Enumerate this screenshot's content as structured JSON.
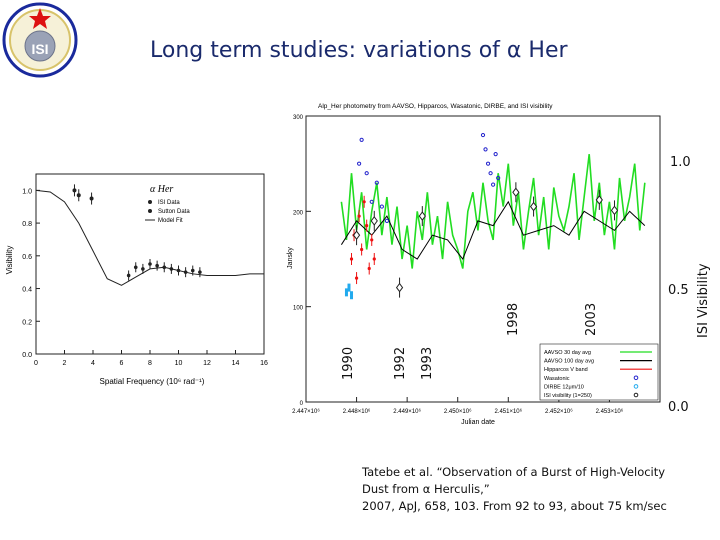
{
  "title": "Long term studies: variations of α Her",
  "logo_text": "ISI",
  "year_labels": [
    "1990",
    "1992",
    "1993",
    "1998",
    "2003"
  ],
  "right_axis": {
    "label": "ISI Visibility",
    "ticks": [
      "1.0",
      "0.5",
      "0.0"
    ]
  },
  "caption": {
    "line1": "Tatebe et al. “Observation of a Burst of High-Velocity",
    "line2": "Dust from α Herculis,”",
    "line3": "2007, ApJ, 658, 103.  From 92 to 93, about 75 km/sec"
  },
  "colors": {
    "title": "#1a2a6c",
    "aavso": "#22dd22",
    "aavso_avg": "#000000",
    "hipparcos": "#ee1111",
    "wasatonic": "#2222cc",
    "dirbe": "#22aaee"
  },
  "chart_data": [
    {
      "type": "scatter",
      "title": "α Her",
      "xlabel": "Spatial Frequency (10⁶ rad⁻¹)",
      "ylabel": "Visibility",
      "xlim": [
        0,
        16
      ],
      "ylim": [
        0,
        1.1
      ],
      "x_ticks": [
        "0",
        "2",
        "4",
        "6",
        "8",
        "10",
        "12",
        "14",
        "16"
      ],
      "y_ticks": [
        "0.0",
        "0.2",
        "0.4",
        "0.6",
        "0.8",
        "1.0"
      ],
      "legend": [
        "ISI Data",
        "Sutton Data",
        "Model Fit"
      ],
      "series": [
        {
          "name": "ISI Data",
          "x": [
            6.5,
            7.0,
            7.5,
            8.0,
            8.5,
            9.0,
            9.5,
            10.0,
            10.5,
            11.0,
            11.5
          ],
          "y": [
            0.48,
            0.53,
            0.52,
            0.55,
            0.54,
            0.53,
            0.52,
            0.51,
            0.5,
            0.51,
            0.5
          ]
        },
        {
          "name": "Sutton Data",
          "x": [
            2.7,
            3.0,
            3.9
          ],
          "y": [
            1.0,
            0.97,
            0.95
          ]
        },
        {
          "name": "Model Fit",
          "x": [
            0,
            1,
            2,
            3,
            4,
            5,
            6,
            7,
            8,
            9,
            10,
            11,
            12,
            13,
            14,
            15,
            16
          ],
          "y": [
            1.0,
            0.99,
            0.93,
            0.8,
            0.63,
            0.46,
            0.42,
            0.47,
            0.52,
            0.53,
            0.51,
            0.49,
            0.48,
            0.48,
            0.48,
            0.49,
            0.49
          ]
        }
      ]
    },
    {
      "type": "line",
      "title": "Alp_Her photometry from AAVSO, Hipparcos, Wasatonic, DIRBE, and ISI visibility",
      "xlabel": "Julian date",
      "ylabel": "Jansky",
      "xlim": [
        2447000,
        2454000
      ],
      "ylim": [
        0,
        300
      ],
      "x_ticks": [
        "2.447×10⁶",
        "2.448×10⁶",
        "2.449×10⁶",
        "2.450×10⁶",
        "2.451×10⁶",
        "2.452×10⁶",
        "2.453×10⁶"
      ],
      "y_ticks": [
        "0",
        "100",
        "200",
        "300"
      ],
      "legend": [
        "AAVSO 30 day avg",
        "AAVSO 100 day avg",
        "Hipparcos V band",
        "Wasatonic",
        "DIRBE 12μm/10",
        "ISI visibility (1=250)"
      ],
      "series": [
        {
          "name": "AAVSO 100 day avg",
          "x": [
            2447700,
            2448000,
            2448300,
            2448600,
            2448900,
            2449200,
            2449500,
            2449800,
            2450100,
            2450400,
            2450700,
            2451000,
            2451300,
            2451600,
            2451900,
            2452200,
            2452500,
            2452800,
            2453100,
            2453400,
            2453700
          ],
          "y": [
            165,
            190,
            175,
            195,
            160,
            150,
            175,
            170,
            150,
            190,
            185,
            210,
            175,
            180,
            185,
            175,
            200,
            190,
            180,
            200,
            185
          ]
        },
        {
          "name": "AAVSO 30 day avg",
          "x": [
            2447700,
            2447800,
            2447900,
            2448000,
            2448100,
            2448200,
            2448300,
            2448400,
            2448500,
            2448600,
            2448700,
            2448800,
            2448900,
            2449000,
            2449100,
            2449200,
            2449300,
            2449400,
            2449500,
            2449600,
            2449700,
            2449800,
            2449900,
            2450000,
            2450100,
            2450200,
            2450300,
            2450400,
            2450500,
            2450600,
            2450700,
            2450800,
            2450900,
            2451000,
            2451100,
            2451200,
            2451300,
            2451400,
            2451500,
            2451600,
            2451700,
            2451800,
            2451900,
            2452000,
            2452100,
            2452200,
            2452300,
            2452400,
            2452500,
            2452600,
            2452700,
            2452800,
            2452900,
            2453000,
            2453100,
            2453200,
            2453300,
            2453400,
            2453500,
            2453600,
            2453700
          ],
          "y": [
            210,
            170,
            240,
            180,
            220,
            160,
            200,
            230,
            175,
            215,
            165,
            205,
            150,
            185,
            140,
            200,
            170,
            220,
            165,
            195,
            150,
            210,
            175,
            160,
            140,
            200,
            220,
            180,
            230,
            190,
            170,
            240,
            205,
            250,
            185,
            220,
            160,
            200,
            235,
            175,
            215,
            160,
            225,
            195,
            180,
            205,
            240,
            170,
            215,
            260,
            190,
            230,
            175,
            210,
            160,
            235,
            190,
            215,
            250,
            180,
            230
          ]
        },
        {
          "name": "Hipparcos V band",
          "x": [
            2447900,
            2447950,
            2448000,
            2448050,
            2448100,
            2448150,
            2448200,
            2448250,
            2448300,
            2448350
          ],
          "y": [
            150,
            175,
            130,
            195,
            160,
            210,
            185,
            140,
            170,
            150
          ]
        },
        {
          "name": "Wasatonic",
          "x": [
            2448050,
            2448100,
            2448200,
            2448300,
            2448400,
            2448500,
            2448600,
            2450500,
            2450550,
            2450600,
            2450650,
            2450700,
            2450750,
            2450800
          ],
          "y": [
            250,
            275,
            240,
            210,
            230,
            205,
            190,
            280,
            265,
            250,
            240,
            228,
            260,
            235
          ]
        },
        {
          "name": "DIRBE 12μm/10",
          "x": [
            2447800,
            2447850,
            2447900
          ],
          "y": [
            115,
            120,
            112
          ]
        },
        {
          "name": "ISI visibility (1=250)",
          "x": [
            2448000,
            2448350,
            2448850,
            2449300,
            2451150,
            2451500,
            2452800,
            2453100
          ],
          "y": [
            175,
            190,
            120,
            195,
            220,
            205,
            212,
            201
          ]
        }
      ]
    }
  ]
}
